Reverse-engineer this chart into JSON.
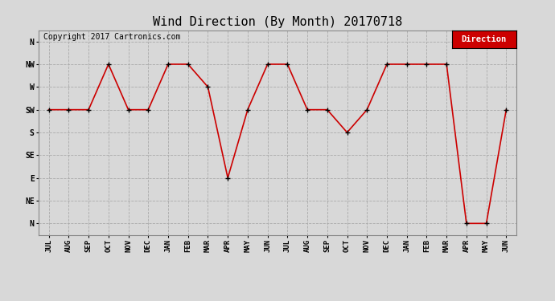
{
  "title": "Wind Direction (By Month) 20170718",
  "copyright": "Copyright 2017 Cartronics.com",
  "legend_label": "Direction",
  "x_labels": [
    "JUL",
    "AUG",
    "SEP",
    "OCT",
    "NOV",
    "DEC",
    "JAN",
    "FEB",
    "MAR",
    "APR",
    "MAY",
    "JUN",
    "JUL",
    "AUG",
    "SEP",
    "OCT",
    "NOV",
    "DEC",
    "JAN",
    "FEB",
    "MAR",
    "APR",
    "MAY",
    "JUN"
  ],
  "y_labels": [
    "N",
    "NW",
    "W",
    "SW",
    "S",
    "SE",
    "E",
    "NE",
    "N"
  ],
  "y_values": [
    8,
    7,
    6,
    5,
    4,
    3,
    2,
    1,
    0
  ],
  "data_values": [
    5,
    5,
    5,
    7,
    5,
    5,
    7,
    7,
    6,
    2,
    5,
    7,
    7,
    5,
    5,
    4,
    5,
    7,
    7,
    7,
    7,
    0,
    0,
    5
  ],
  "line_color": "#cc0000",
  "marker_color": "#000000",
  "background_color": "#d8d8d8",
  "grid_color": "#aaaaaa",
  "title_fontsize": 11,
  "copyright_fontsize": 7,
  "legend_bg": "#cc0000",
  "legend_text_color": "#ffffff",
  "figwidth": 6.9,
  "figheight": 3.75,
  "dpi": 100
}
